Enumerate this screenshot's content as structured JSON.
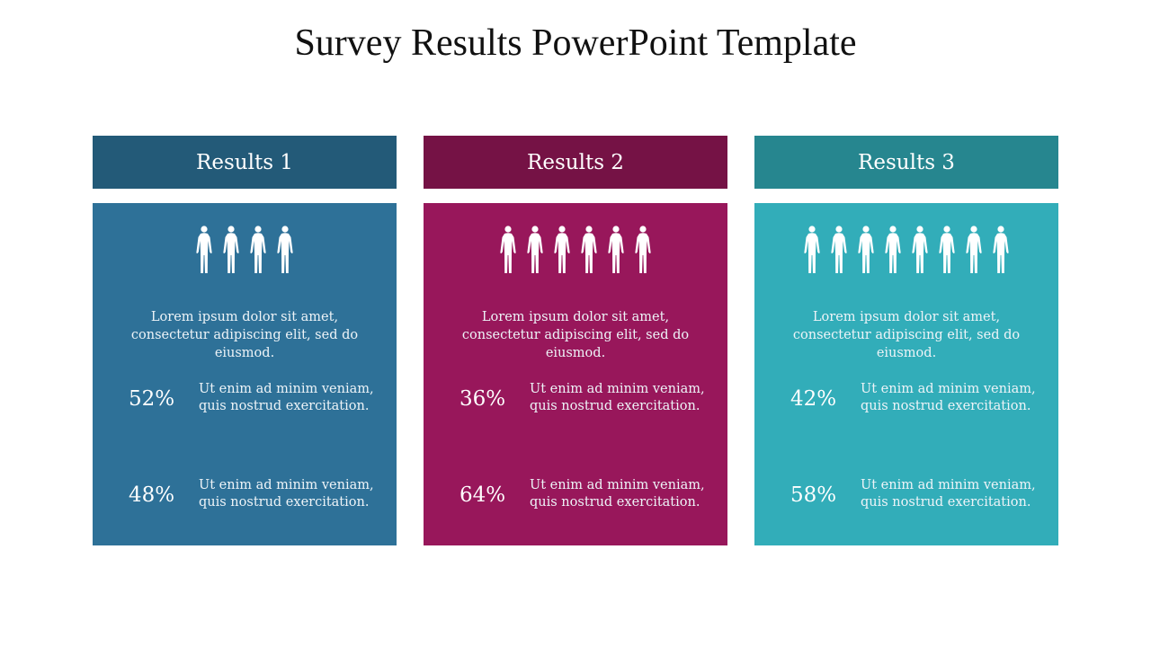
{
  "title": "Survey Results PowerPoint Template",
  "columns": [
    {
      "header": "Results 1",
      "header_color": "#235a78",
      "body_color": "#2e7198",
      "people_count": 4,
      "description": "Lorem ipsum dolor sit amet, consectetur adipiscing elit, sed do eiusmod.",
      "stats": [
        {
          "value": "52%",
          "text": "Ut enim ad minim veniam, quis nostrud exercitation."
        },
        {
          "value": "48%",
          "text": "Ut enim ad minim veniam, quis nostrud exercitation."
        }
      ]
    },
    {
      "header": "Results 2",
      "header_color": "#751245",
      "body_color": "#98175b",
      "people_count": 6,
      "description": "Lorem ipsum dolor sit amet, consectetur adipiscing elit, sed do eiusmod.",
      "stats": [
        {
          "value": "36%",
          "text": "Ut enim ad minim veniam, quis nostrud exercitation."
        },
        {
          "value": "64%",
          "text": "Ut enim ad minim veniam, quis nostrud exercitation."
        }
      ]
    },
    {
      "header": "Results 3",
      "header_color": "#26868f",
      "body_color": "#32adb9",
      "people_count": 8,
      "description": "Lorem ipsum dolor sit amet, consectetur adipiscing elit, sed do eiusmod.",
      "stats": [
        {
          "value": "42%",
          "text": "Ut enim ad minim veniam, quis nostrud exercitation."
        },
        {
          "value": "58%",
          "text": "Ut enim ad minim veniam, quis nostrud exercitation."
        }
      ]
    }
  ]
}
